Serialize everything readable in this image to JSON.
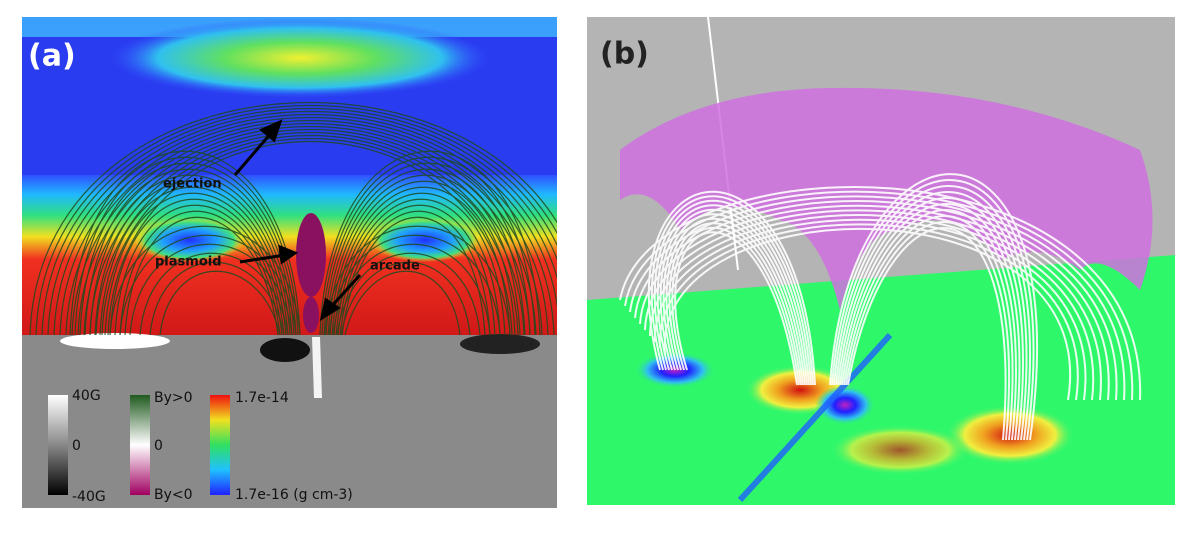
{
  "panels": [
    {
      "label": "(a)",
      "annotations": [
        "ejection",
        "plasmoid",
        "arcade"
      ],
      "colorbars": [
        {
          "labels": [
            "40G",
            "0",
            "-40G"
          ]
        },
        {
          "labels": [
            "By>0",
            "0",
            "By<0"
          ]
        },
        {
          "labels": [
            "1.7e-14",
            "1.7e-16 (g cm-3)"
          ]
        }
      ]
    },
    {
      "label": "(b)"
    }
  ]
}
